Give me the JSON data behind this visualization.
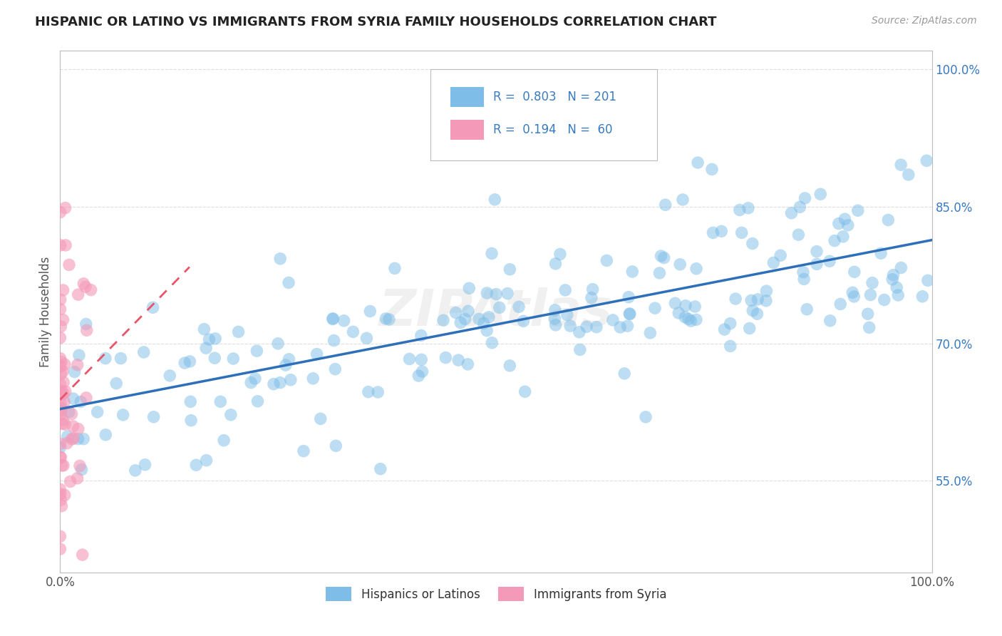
{
  "title": "HISPANIC OR LATINO VS IMMIGRANTS FROM SYRIA FAMILY HOUSEHOLDS CORRELATION CHART",
  "source_text": "Source: ZipAtlas.com",
  "ylabel": "Family Households",
  "R_blue": 0.803,
  "N_blue": 201,
  "R_pink": 0.194,
  "N_pink": 60,
  "legend_label_blue": "Hispanics or Latinos",
  "legend_label_pink": "Immigrants from Syria",
  "watermark": "ZIPAtlas",
  "blue_color": "#7dbde8",
  "pink_color": "#f499b7",
  "blue_line_color": "#2e6fba",
  "pink_line_color": "#e8546a",
  "title_color": "#222222",
  "source_color": "#999999",
  "tick_color_right": "#3a7bbf",
  "tick_color_x": "#555555",
  "grid_color": "#dddddd",
  "ytick_vals": [
    0.55,
    0.7,
    0.85,
    1.0
  ],
  "ytick_labels": [
    "55.0%",
    "70.0%",
    "85.0%",
    "100.0%"
  ],
  "xtick_vals": [
    0.0,
    1.0
  ],
  "xtick_labels": [
    "0.0%",
    "100.0%"
  ],
  "xlim": [
    0.0,
    1.0
  ],
  "ylim": [
    0.45,
    1.02
  ]
}
